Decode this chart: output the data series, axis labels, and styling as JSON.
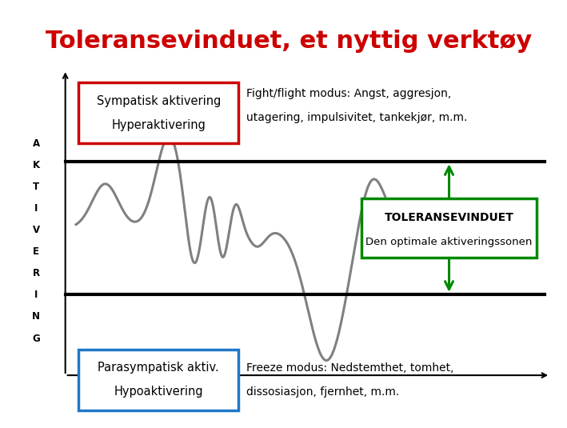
{
  "title": "Toleransevinduet, et nyttig verktøy",
  "title_color": "#cc0000",
  "title_fontsize": 22,
  "bg_color": "#ffffff",
  "upper_box_label1": "Sympatisk aktivering",
  "upper_box_label2": "Hyperaktivering",
  "upper_box_color": "#cc0000",
  "lower_box_label1": "Parasympatisk aktiv.",
  "lower_box_label2": "Hypoaktivering",
  "lower_box_color": "#1f78c8",
  "right_box_label1": "TOLERANSEVINDUET",
  "right_box_label2": "Den optimale aktiveringssonen",
  "right_box_color": "#008800",
  "fight_text_line1": "Fight/flight modus: Angst, aggresjon,",
  "fight_text_line2": "utagering, impulsivitet, tankekjør, m.m.",
  "freeze_text_line1": "Freeze modus: Nedstemthet, tomhet,",
  "freeze_text_line2": "dissosiasjon, fjernhet, m.m.",
  "ylabel_letters": [
    "A",
    "K",
    "T",
    "I",
    "V",
    "E",
    "R",
    "I",
    "N",
    "G"
  ]
}
